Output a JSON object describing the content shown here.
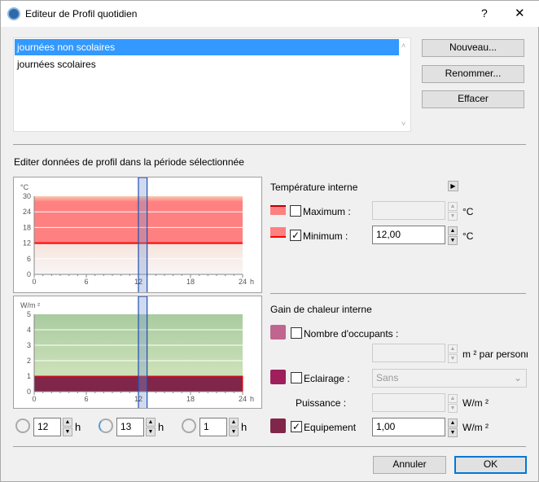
{
  "window": {
    "title": "Editeur de Profil quotidien",
    "help": "?",
    "close": "✕"
  },
  "profiles": [
    {
      "label": "journées non scolaires",
      "selected": true
    },
    {
      "label": "journées scolaires",
      "selected": false
    }
  ],
  "buttons": {
    "new": "Nouveau...",
    "rename": "Renommer...",
    "delete": "Effacer",
    "cancel": "Annuler",
    "ok": "OK"
  },
  "section_title": "Editer données de profil dans la période sélectionnée",
  "chart_data": [
    {
      "type": "area",
      "ylabel": "°C",
      "xlabel": "h",
      "xlim": [
        0,
        24
      ],
      "ylim": [
        0,
        30
      ],
      "xticks": [
        "0",
        "6",
        "12",
        "18",
        "24"
      ],
      "yticks": [
        "0",
        "6",
        "12",
        "18",
        "24",
        "30"
      ],
      "series": [
        {
          "name": "Minimum",
          "values": [
            12,
            12
          ],
          "x": [
            0,
            24
          ],
          "color": "#ff0000"
        }
      ],
      "selection": [
        12,
        13
      ]
    },
    {
      "type": "area",
      "ylabel": "W/m ²",
      "xlabel": "h",
      "xlim": [
        0,
        24
      ],
      "ylim": [
        0,
        5
      ],
      "xticks": [
        "0",
        "6",
        "12",
        "18",
        "24"
      ],
      "yticks": [
        "0",
        "1",
        "2",
        "3",
        "4",
        "5"
      ],
      "series": [
        {
          "name": "Equipement",
          "values": [
            1,
            1
          ],
          "x": [
            0,
            24
          ],
          "color": "#80264a"
        }
      ],
      "selection": [
        12,
        13
      ]
    }
  ],
  "time": {
    "start": "12",
    "end": "13",
    "duration": "1",
    "unit": "h"
  },
  "temp": {
    "title": "Température interne",
    "max_label": "Maximum :",
    "max_checked": false,
    "max_value": "",
    "min_label": "Minimum :",
    "min_checked": true,
    "min_value": "12,00",
    "unit": "°C"
  },
  "gain": {
    "title": "Gain de chaleur interne",
    "occupants_label": "Nombre d'occupants :",
    "occupants_checked": false,
    "occupants_value": "",
    "occupants_unit": "m ² par personne",
    "occupants_color": "#bf6590",
    "lighting_label": "Eclairage :",
    "lighting_checked": false,
    "lighting_select": "Sans",
    "lighting_color": "#9e1f5c",
    "power_label": "Puissance :",
    "power_value": "",
    "power_unit": "W/m ²",
    "equipment_label": "Equipement",
    "equipment_checked": true,
    "equipment_value": "1,00",
    "equipment_unit": "W/m ²",
    "equipment_color": "#80264a"
  }
}
